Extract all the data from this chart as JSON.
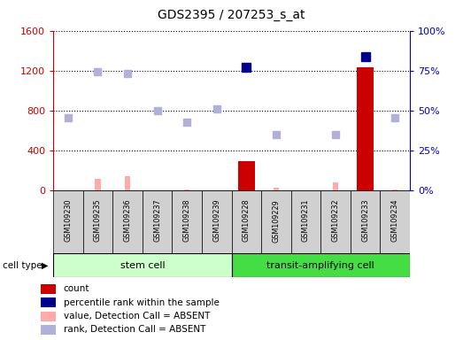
{
  "title": "GDS2395 / 207253_s_at",
  "samples": [
    "GSM109230",
    "GSM109235",
    "GSM109236",
    "GSM109237",
    "GSM109238",
    "GSM109239",
    "GSM109228",
    "GSM109229",
    "GSM109231",
    "GSM109232",
    "GSM109233",
    "GSM109234"
  ],
  "count_values": [
    0,
    0,
    0,
    0,
    0,
    0,
    290,
    0,
    0,
    0,
    1230,
    0
  ],
  "percentile_rank": [
    null,
    null,
    null,
    null,
    null,
    null,
    1230,
    null,
    null,
    null,
    1340,
    null
  ],
  "value_absent": [
    0,
    120,
    140,
    0,
    10,
    0,
    0,
    30,
    0,
    80,
    0,
    10
  ],
  "rank_absent": [
    730,
    1185,
    1170,
    800,
    680,
    820,
    null,
    560,
    null,
    560,
    null,
    730
  ],
  "ylim_left": [
    0,
    1600
  ],
  "ylim_right": [
    0,
    100
  ],
  "yticks_left": [
    0,
    400,
    800,
    1200,
    1600
  ],
  "yticks_right": [
    0,
    25,
    50,
    75,
    100
  ],
  "ytick_labels_right": [
    "0%",
    "25%",
    "50%",
    "75%",
    "100%"
  ],
  "bar_color_count": "#cc0000",
  "bar_color_absent_value": "#ffaaaa",
  "dot_color_percentile": "#00008b",
  "dot_color_rank_absent": "#b0b0d8",
  "plot_bg": "#ffffff",
  "stem_cell_color": "#ccffcc",
  "transit_cell_color": "#44dd44",
  "left_axis_color": "#cc0000",
  "right_axis_color": "#0000cc",
  "legend_items": [
    {
      "color": "#cc0000",
      "label": "count"
    },
    {
      "color": "#00008b",
      "label": "percentile rank within the sample"
    },
    {
      "color": "#ffaaaa",
      "label": "value, Detection Call = ABSENT"
    },
    {
      "color": "#b0b0d8",
      "label": "rank, Detection Call = ABSENT"
    }
  ]
}
